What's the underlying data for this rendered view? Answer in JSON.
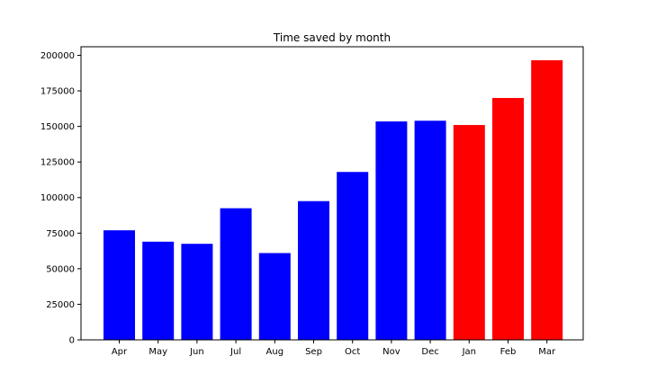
{
  "chart_data": {
    "type": "bar",
    "title": "Time saved by month",
    "xlabel": "",
    "ylabel": "",
    "categories": [
      "Apr",
      "May",
      "Jun",
      "Jul",
      "Aug",
      "Sep",
      "Oct",
      "Nov",
      "Dec",
      "Jan",
      "Feb",
      "Mar"
    ],
    "values": [
      77000,
      69000,
      67500,
      92500,
      61000,
      97500,
      118000,
      153500,
      154000,
      151000,
      170000,
      196500
    ],
    "bar_colors": [
      "#0000ff",
      "#0000ff",
      "#0000ff",
      "#0000ff",
      "#0000ff",
      "#0000ff",
      "#0000ff",
      "#0000ff",
      "#0000ff",
      "#ff0000",
      "#ff0000",
      "#ff0000"
    ],
    "ylim": [
      0,
      206000
    ],
    "yticks": [
      0,
      25000,
      50000,
      75000,
      100000,
      125000,
      150000,
      175000,
      200000
    ],
    "ytick_labels": [
      "0",
      "25000",
      "50000",
      "75000",
      "100000",
      "125000",
      "150000",
      "175000",
      "200000"
    ],
    "grid": false,
    "legend": "none"
  }
}
